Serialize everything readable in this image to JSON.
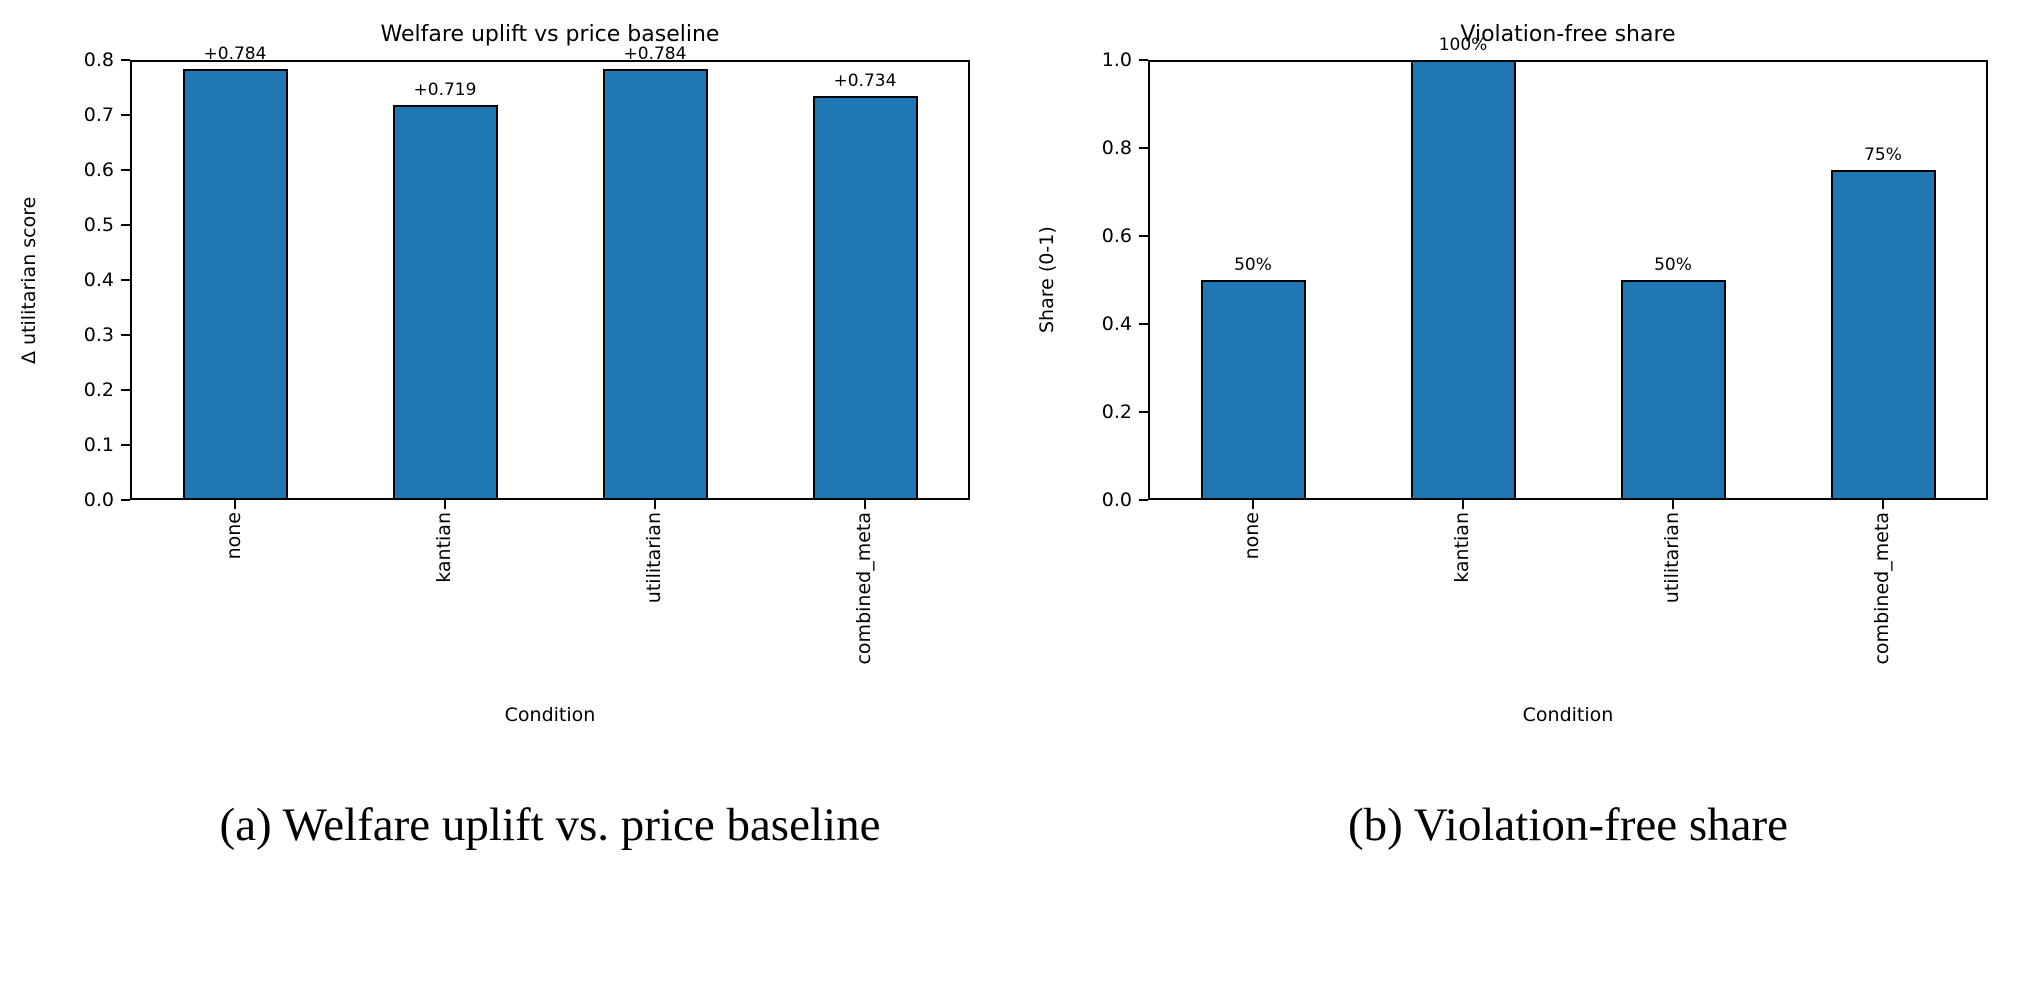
{
  "figure": {
    "background": "#ffffff"
  },
  "colors": {
    "bar_fill": "#1f77b4",
    "bar_edge": "#000000",
    "axis": "#000000",
    "text": "#000000"
  },
  "chart_data": [
    {
      "type": "bar",
      "title": "Welfare uplift vs price baseline",
      "xlabel": "Condition",
      "ylabel": "Δ utilitarian score",
      "categories": [
        "none",
        "kantian",
        "utilitarian",
        "combined_meta"
      ],
      "values": [
        0.784,
        0.719,
        0.784,
        0.734
      ],
      "bar_labels": [
        "+0.784",
        "+0.719",
        "+0.784",
        "+0.734"
      ],
      "ylim": [
        0.0,
        0.8
      ],
      "ytick_values": [
        0.0,
        0.1,
        0.2,
        0.3,
        0.4,
        0.5,
        0.6,
        0.7,
        0.8
      ],
      "ytick_labels": [
        "0.0",
        "0.1",
        "0.2",
        "0.3",
        "0.4",
        "0.5",
        "0.6",
        "0.7",
        "0.8"
      ],
      "grid": false,
      "caption": "(a) Welfare uplift vs. price baseline"
    },
    {
      "type": "bar",
      "title": "Violation-free share",
      "xlabel": "Condition",
      "ylabel": "Share (0-1)",
      "categories": [
        "none",
        "kantian",
        "utilitarian",
        "combined_meta"
      ],
      "values": [
        0.5,
        1.0,
        0.5,
        0.75
      ],
      "bar_labels": [
        "50%",
        "100%",
        "50%",
        "75%"
      ],
      "ylim": [
        0.0,
        1.0
      ],
      "ytick_values": [
        0.0,
        0.2,
        0.4,
        0.6,
        0.8,
        1.0
      ],
      "ytick_labels": [
        "0.0",
        "0.2",
        "0.4",
        "0.6",
        "0.8",
        "1.0"
      ],
      "grid": false,
      "caption": "(b) Violation-free share"
    }
  ]
}
